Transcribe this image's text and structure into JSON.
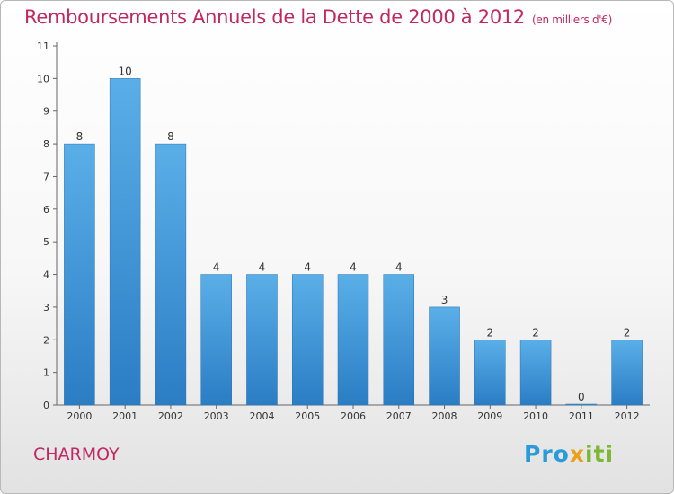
{
  "chart_data": {
    "type": "bar",
    "title": "Remboursements Annuels de la Dette de 2000 à 2012",
    "unit": "(en milliers d'€)",
    "categories": [
      "2000",
      "2001",
      "2002",
      "2003",
      "2004",
      "2005",
      "2006",
      "2007",
      "2008",
      "2009",
      "2010",
      "2011",
      "2012"
    ],
    "values": [
      8,
      10,
      8,
      4,
      4,
      4,
      4,
      4,
      3,
      2,
      2,
      0,
      2
    ],
    "ylim": [
      0,
      11
    ],
    "yticks": [
      0,
      1,
      2,
      3,
      4,
      5,
      6,
      7,
      8,
      9,
      10,
      11
    ],
    "grid": false,
    "legend": "none",
    "bar_color": "#3d8fd6"
  },
  "commune": "CHARMOY",
  "logo": {
    "letters": [
      {
        "ch": "P",
        "color": "#2a9bd8"
      },
      {
        "ch": "r",
        "color": "#2a9bd8"
      },
      {
        "ch": "o",
        "color": "#2a9bd8"
      },
      {
        "ch": "x",
        "color": "#e8a118"
      },
      {
        "ch": "i",
        "color": "#7cb834"
      },
      {
        "ch": "t",
        "color": "#7cb834"
      },
      {
        "ch": "i",
        "color": "#7cb834"
      }
    ]
  }
}
